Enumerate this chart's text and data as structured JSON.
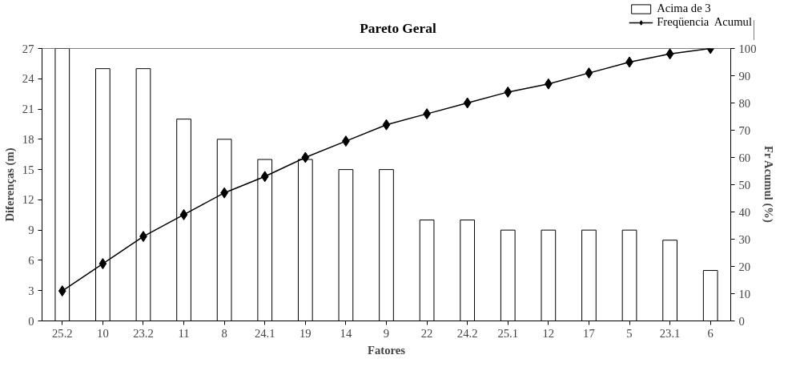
{
  "chart_data": {
    "type": "bar",
    "title": "Pareto Geral",
    "xlabel": "Fatores",
    "ylabel": "Diferenças (m)",
    "y2label": "Fr Acumul (%)",
    "categories": [
      "25.2",
      "10",
      "23.2",
      "11",
      "8",
      "24.1",
      "19",
      "14",
      "9",
      "22",
      "24.2",
      "25.1",
      "12",
      "17",
      "5",
      "23.1",
      "6"
    ],
    "series": [
      {
        "name": "Acima de 3",
        "color": "#ffffff",
        "values": [
          27,
          25,
          25,
          20,
          18,
          16,
          16,
          15,
          15,
          10,
          10,
          9,
          9,
          9,
          9,
          8,
          5
        ]
      },
      {
        "name": "Freqüencia  Acumul",
        "type": "line",
        "axis": "y2",
        "color": "#000000",
        "marker": "diamond",
        "values": [
          11,
          21,
          31,
          39,
          47,
          53,
          60,
          66,
          72,
          76,
          80,
          84,
          87,
          91,
          95,
          98,
          100
        ]
      }
    ],
    "ylim": [
      0,
      27
    ],
    "yticks": [
      0,
      3,
      6,
      9,
      12,
      15,
      18,
      21,
      24,
      27
    ],
    "y2lim": [
      0,
      100
    ],
    "y2ticks": [
      0,
      10,
      20,
      30,
      40,
      50,
      60,
      70,
      80,
      90,
      100
    ],
    "grid": false,
    "legend": "top right"
  }
}
